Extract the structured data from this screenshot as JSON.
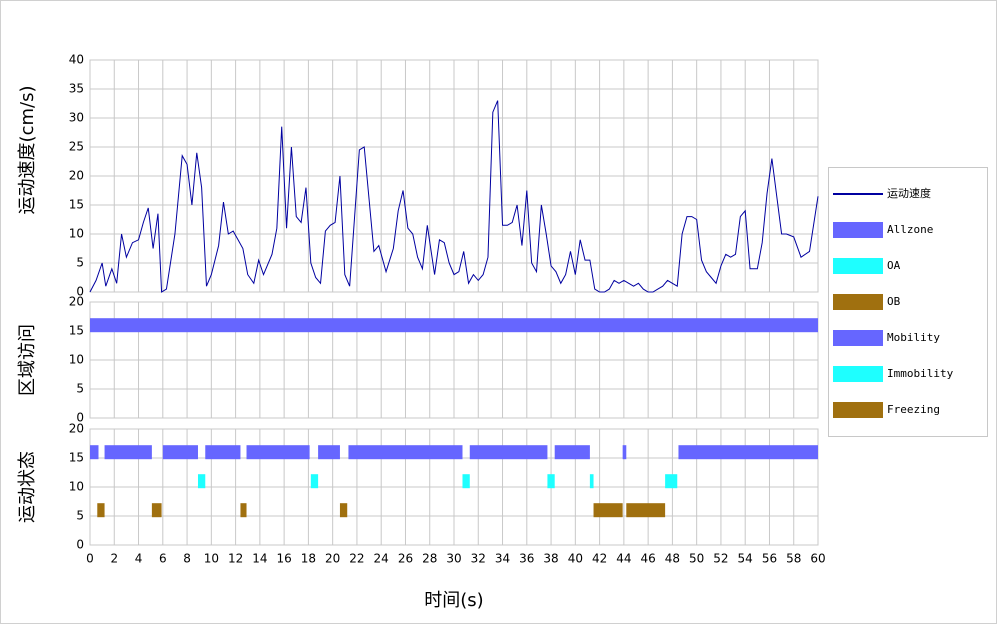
{
  "chart_data": [
    {
      "type": "line",
      "y_label": "运动速度(cm/s)",
      "x": [
        0,
        0.5,
        1,
        1.3,
        1.8,
        2.2,
        2.6,
        3,
        3.5,
        4,
        4.4,
        4.8,
        5.2,
        5.6,
        5.9,
        6.3,
        7,
        7.6,
        8,
        8.4,
        8.8,
        9.2,
        9.6,
        10,
        10.6,
        11,
        11.4,
        11.8,
        12.2,
        12.6,
        13,
        13.5,
        13.9,
        14.3,
        15,
        15.4,
        15.8,
        16.2,
        16.6,
        17,
        17.4,
        17.8,
        18.2,
        18.6,
        19,
        19.4,
        19.8,
        20.2,
        20.6,
        21,
        21.4,
        22.2,
        22.6,
        23,
        23.4,
        23.8,
        24.4,
        25,
        25.4,
        25.8,
        26.2,
        26.6,
        27,
        27.4,
        27.8,
        28.4,
        28.8,
        29.2,
        29.6,
        30,
        30.4,
        30.8,
        31.2,
        31.6,
        32,
        32.4,
        32.8,
        33.2,
        33.6,
        34,
        34.4,
        34.8,
        35.2,
        35.6,
        36,
        36.4,
        36.8,
        37.2,
        37.6,
        38,
        38.4,
        38.8,
        39.2,
        39.6,
        40,
        40.4,
        40.8,
        41.2,
        41.6,
        42,
        42.4,
        42.8,
        43.2,
        43.6,
        44,
        44.4,
        44.8,
        45.2,
        45.6,
        46,
        46.4,
        46.8,
        47.2,
        47.6,
        48,
        48.4,
        48.8,
        49.2,
        49.6,
        50,
        50.4,
        50.8,
        51.2,
        51.6,
        52,
        52.4,
        52.8,
        53.2,
        53.6,
        54,
        54.4,
        55,
        55.4,
        55.8,
        56.2,
        56.6,
        57,
        57.4,
        58,
        58.6,
        59.3,
        60
      ],
      "series": [
        {
          "name": "运动速度",
          "color": "#0000a0",
          "values": [
            0,
            2,
            5,
            1,
            4,
            1.5,
            10,
            6,
            8.5,
            9,
            12,
            14.5,
            7.5,
            13.5,
            0,
            0.5,
            10,
            23.5,
            22,
            15,
            24,
            18,
            1,
            3,
            8,
            15.5,
            10,
            10.5,
            9,
            7.5,
            3,
            1.5,
            5.5,
            3,
            6.5,
            11,
            28.5,
            11,
            25,
            13,
            12,
            18,
            5,
            2.5,
            1.5,
            10.5,
            11.5,
            12,
            20,
            3,
            1,
            24.5,
            25,
            16,
            7,
            8,
            3.5,
            7.5,
            14,
            17.5,
            11,
            10,
            6,
            4,
            11.5,
            3,
            9,
            8.5,
            5,
            3,
            3.5,
            7,
            1.5,
            3,
            2,
            3,
            6,
            31,
            33,
            11.5,
            11.5,
            12,
            15,
            8,
            17.5,
            5,
            3.5,
            15,
            10,
            4.5,
            3.5,
            1.5,
            3,
            7,
            3,
            9,
            5.5,
            5.5,
            0.5,
            0,
            0,
            0.5,
            2,
            1.5,
            2,
            1.5,
            1,
            1.5,
            0.5,
            0,
            0,
            0.5,
            1,
            2,
            1.5,
            1,
            10,
            13,
            13,
            12.5,
            5.5,
            3.5,
            2.5,
            1.5,
            4.5,
            6.5,
            6,
            6.5,
            13,
            14,
            4,
            4,
            8.5,
            17,
            23,
            16.5,
            10,
            10,
            9.5,
            6,
            7,
            16.5
          ]
        }
      ],
      "xlim": [
        0,
        60
      ],
      "xticks": [
        0,
        2,
        4,
        6,
        8,
        10,
        12,
        14,
        16,
        18,
        20,
        22,
        24,
        26,
        28,
        30,
        32,
        34,
        36,
        38,
        40,
        42,
        44,
        46,
        48,
        50,
        52,
        54,
        56,
        58,
        60
      ],
      "ylim": [
        0,
        40
      ],
      "yticks": [
        0,
        5,
        10,
        15,
        20,
        25,
        30,
        35,
        40
      ],
      "grid": true,
      "legend": "right"
    },
    {
      "type": "timeline",
      "y_label": "区域访问",
      "series": [
        {
          "name": "Allzone",
          "color": "#6666ff",
          "level": 16,
          "intervals": [
            [
              0,
              60
            ]
          ]
        },
        {
          "name": "OA",
          "color": "#1effff",
          "intervals": []
        },
        {
          "name": "OB",
          "color": "#a0700f",
          "intervals": []
        }
      ],
      "xlim": [
        0,
        60
      ],
      "xticks": [
        0,
        2,
        4,
        6,
        8,
        10,
        12,
        14,
        16,
        18,
        20,
        22,
        24,
        26,
        28,
        30,
        32,
        34,
        36,
        38,
        40,
        42,
        44,
        46,
        48,
        50,
        52,
        54,
        56,
        58,
        60
      ],
      "ylim": [
        0,
        20
      ],
      "yticks": [
        0,
        5,
        10,
        15,
        20
      ],
      "grid": true
    },
    {
      "type": "timeline",
      "y_label": "运动状态",
      "x_label": "时间(s)",
      "series": [
        {
          "name": "Mobility",
          "color": "#6666ff",
          "level": 16,
          "intervals": [
            [
              0,
              0.7
            ],
            [
              1.2,
              5.1
            ],
            [
              6,
              8.9
            ],
            [
              9.5,
              12.4
            ],
            [
              12.9,
              18.1
            ],
            [
              18.8,
              20.6
            ],
            [
              21.3,
              30.7
            ],
            [
              31.3,
              37.7
            ],
            [
              38.3,
              41.2
            ],
            [
              43.9,
              44.2
            ],
            [
              48.5,
              60
            ]
          ]
        },
        {
          "name": "Immobility",
          "color": "#1effff",
          "level": 11,
          "intervals": [
            [
              8.9,
              9.5
            ],
            [
              18.2,
              18.8
            ],
            [
              30.7,
              31.3
            ],
            [
              37.7,
              38.3
            ],
            [
              41.2,
              41.5
            ],
            [
              47.4,
              48.4
            ]
          ]
        },
        {
          "name": "Freezing",
          "color": "#a0700f",
          "level": 6,
          "intervals": [
            [
              0.6,
              1.2
            ],
            [
              5.1,
              5.9
            ],
            [
              12.4,
              12.9
            ],
            [
              20.6,
              21.2
            ],
            [
              41.5,
              43.9
            ],
            [
              44.2,
              47.4
            ]
          ]
        }
      ],
      "xlim": [
        0,
        60
      ],
      "xticks": [
        0,
        2,
        4,
        6,
        8,
        10,
        12,
        14,
        16,
        18,
        20,
        22,
        24,
        26,
        28,
        30,
        32,
        34,
        36,
        38,
        40,
        42,
        44,
        46,
        48,
        50,
        52,
        54,
        56,
        58,
        60
      ],
      "ylim": [
        0,
        20
      ],
      "yticks": [
        0,
        5,
        10,
        15,
        20
      ],
      "grid": true
    }
  ]
}
